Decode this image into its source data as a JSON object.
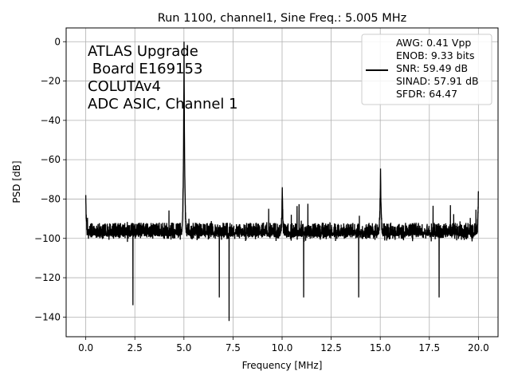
{
  "chart_data": {
    "type": "line",
    "title": "Run 1100, channel1, Sine Freq.: 5.005 MHz",
    "xlabel": "Frequency [MHz]",
    "ylabel": "PSD [dB]",
    "xlim": [
      -1.0,
      21.0
    ],
    "ylim": [
      -150,
      7
    ],
    "xticks": [
      0.0,
      2.5,
      5.0,
      7.5,
      10.0,
      12.5,
      15.0,
      17.5,
      20.0
    ],
    "xtick_labels": [
      "0.0",
      "2.5",
      "5.0",
      "7.5",
      "10.0",
      "12.5",
      "15.0",
      "17.5",
      "20.0"
    ],
    "yticks": [
      0,
      -20,
      -40,
      -60,
      -80,
      -100,
      -120,
      -140
    ],
    "ytick_labels": [
      "0",
      "−20",
      "−40",
      "−60",
      "−80",
      "−100",
      "−120",
      "−140"
    ],
    "grid": true,
    "line_color": "#000000",
    "annotation": [
      "ATLAS Upgrade",
      " Board E169153",
      "COLUTAv4",
      "ADC ASIC, Channel 1"
    ],
    "legend": {
      "placement": "top-right",
      "lines": [
        "AWG: 0.41 Vpp",
        "ENOB: 9.33 bits",
        "SNR: 59.49 dB",
        "SINAD: 57.91 dB",
        "SFDR: 64.47"
      ]
    },
    "series": [
      {
        "noise_floor_db": -100,
        "peaks": [
          {
            "x": 0.0,
            "y": -78
          },
          {
            "x": 5.005,
            "y": 0
          },
          {
            "x": 10.01,
            "y": -74
          },
          {
            "x": 15.015,
            "y": -64.5
          },
          {
            "x": 20.0,
            "y": -76
          }
        ],
        "dips": [
          {
            "x": 2.4,
            "y": -134
          },
          {
            "x": 7.3,
            "y": -142
          },
          {
            "x": 6.8,
            "y": -130
          },
          {
            "x": 11.1,
            "y": -130
          },
          {
            "x": 13.9,
            "y": -130
          },
          {
            "x": 18.0,
            "y": -130
          }
        ]
      }
    ]
  }
}
